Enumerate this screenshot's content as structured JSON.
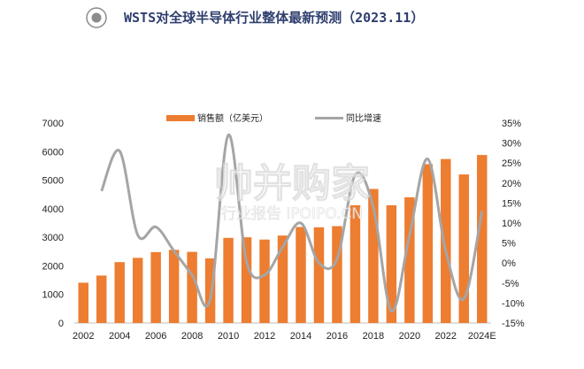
{
  "header": {
    "icon": "radio-target-icon",
    "title": "WSTS对全球半导体行业整体最新预测（2023.11）"
  },
  "watermark": {
    "line1": "帅并购家",
    "line2": "行业报告 IPOIPO.CN"
  },
  "colors": {
    "bar": "#ED7D31",
    "line": "#A5A5A5",
    "title": "#2E3E6E"
  },
  "chart_data": {
    "type": "bar",
    "title": "WSTS对全球半导体行业整体最新预测（2023.11）",
    "categories": [
      "2002",
      "2003",
      "2004",
      "2005",
      "2006",
      "2007",
      "2008",
      "2009",
      "2010",
      "2011",
      "2012",
      "2013",
      "2014",
      "2015",
      "2016",
      "2017",
      "2018",
      "2019",
      "2020",
      "2021",
      "2022",
      "2023",
      "2024E"
    ],
    "x_tick_labels": [
      "2002",
      "2004",
      "2006",
      "2008",
      "2010",
      "2012",
      "2014",
      "2016",
      "2018",
      "2020",
      "2022",
      "2024E"
    ],
    "series": [
      {
        "name": "销售额（亿美元）",
        "type": "bar",
        "axis": "left",
        "values": [
          1410,
          1660,
          2130,
          2280,
          2480,
          2560,
          2490,
          2260,
          2980,
          3000,
          2920,
          3060,
          3360,
          3350,
          3390,
          4120,
          4690,
          4120,
          4400,
          5560,
          5740,
          5200,
          5880
        ]
      },
      {
        "name": "同比增速",
        "type": "line",
        "axis": "right",
        "values": [
          null,
          18,
          28,
          7,
          9,
          3,
          -3,
          -9,
          32,
          0.4,
          -3,
          4,
          10,
          0,
          1,
          22,
          14,
          -12,
          7,
          26,
          3,
          -9,
          13
        ]
      }
    ],
    "y_left": {
      "min": 0,
      "max": 7000,
      "ticks": [
        "0",
        "1000",
        "2000",
        "3000",
        "4000",
        "5000",
        "6000",
        "7000"
      ]
    },
    "y_right": {
      "min": -15,
      "max": 35,
      "ticks": [
        "-15%",
        "-10%",
        "-5%",
        "0%",
        "5%",
        "10%",
        "15%",
        "20%",
        "25%",
        "30%",
        "35%"
      ]
    },
    "legend": {
      "position": "top",
      "bar_label": "销售额（亿美元）",
      "line_label": "同比增速"
    },
    "grid": false
  }
}
